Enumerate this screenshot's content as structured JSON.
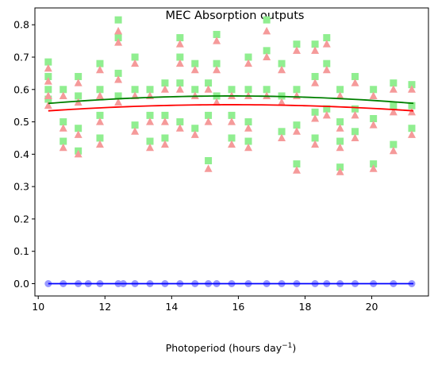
{
  "chart_data": {
    "type": "scatter",
    "title": "MEC Absorption outputs",
    "xlabel": "Photoperiod (hours day",
    "xlabel_sup": "−1",
    "xlabel_end": ")",
    "ylabel": "",
    "xlim": [
      9.9,
      21.7
    ],
    "ylim": [
      -0.038,
      0.852
    ],
    "x_ticks": [
      10,
      12,
      14,
      16,
      18,
      20
    ],
    "x_tick_labels": [
      "10",
      "12",
      "14",
      "16",
      "18",
      "20"
    ],
    "y_ticks": [
      0.0,
      0.1,
      0.2,
      0.3,
      0.4,
      0.5,
      0.6,
      0.7,
      0.8
    ],
    "y_tick_labels": [
      "0.0",
      "0.1",
      "0.2",
      "0.3",
      "0.4",
      "0.5",
      "0.6",
      "0.7",
      "0.8"
    ],
    "grid": false,
    "legend": "none",
    "x_range": [
      10.3,
      21.25
    ],
    "series": [
      {
        "marker": "square",
        "color": "#90ee90",
        "points": [
          [
            10.3,
            0.685
          ],
          [
            10.3,
            0.64
          ],
          [
            10.3,
            0.6
          ],
          [
            10.3,
            0.57
          ],
          [
            10.75,
            0.6
          ],
          [
            10.75,
            0.5
          ],
          [
            10.75,
            0.44
          ],
          [
            11.2,
            0.64
          ],
          [
            11.2,
            0.58
          ],
          [
            11.2,
            0.48
          ],
          [
            11.2,
            0.41
          ],
          [
            11.85,
            0.68
          ],
          [
            11.85,
            0.6
          ],
          [
            11.85,
            0.52
          ],
          [
            11.85,
            0.45
          ],
          [
            12.4,
            0.815
          ],
          [
            12.4,
            0.76
          ],
          [
            12.4,
            0.65
          ],
          [
            12.4,
            0.58
          ],
          [
            12.9,
            0.7
          ],
          [
            12.9,
            0.6
          ],
          [
            12.9,
            0.49
          ],
          [
            13.35,
            0.6
          ],
          [
            13.35,
            0.52
          ],
          [
            13.35,
            0.44
          ],
          [
            13.8,
            0.62
          ],
          [
            13.8,
            0.52
          ],
          [
            13.8,
            0.45
          ],
          [
            14.25,
            0.76
          ],
          [
            14.25,
            0.7
          ],
          [
            14.25,
            0.62
          ],
          [
            14.25,
            0.5
          ],
          [
            14.7,
            0.68
          ],
          [
            14.7,
            0.6
          ],
          [
            14.7,
            0.48
          ],
          [
            15.1,
            0.62
          ],
          [
            15.1,
            0.52
          ],
          [
            15.1,
            0.38
          ],
          [
            15.35,
            0.77
          ],
          [
            15.35,
            0.68
          ],
          [
            15.35,
            0.58
          ],
          [
            15.8,
            0.6
          ],
          [
            15.8,
            0.52
          ],
          [
            15.8,
            0.45
          ],
          [
            16.3,
            0.7
          ],
          [
            16.3,
            0.6
          ],
          [
            16.3,
            0.5
          ],
          [
            16.3,
            0.44
          ],
          [
            16.85,
            0.815
          ],
          [
            16.85,
            0.72
          ],
          [
            16.85,
            0.6
          ],
          [
            17.3,
            0.68
          ],
          [
            17.3,
            0.58
          ],
          [
            17.3,
            0.47
          ],
          [
            17.75,
            0.74
          ],
          [
            17.75,
            0.6
          ],
          [
            17.75,
            0.49
          ],
          [
            17.75,
            0.37
          ],
          [
            18.3,
            0.74
          ],
          [
            18.3,
            0.64
          ],
          [
            18.3,
            0.53
          ],
          [
            18.3,
            0.45
          ],
          [
            18.65,
            0.76
          ],
          [
            18.65,
            0.68
          ],
          [
            18.65,
            0.54
          ],
          [
            19.05,
            0.6
          ],
          [
            19.05,
            0.5
          ],
          [
            19.05,
            0.44
          ],
          [
            19.05,
            0.36
          ],
          [
            19.5,
            0.64
          ],
          [
            19.5,
            0.54
          ],
          [
            19.5,
            0.47
          ],
          [
            20.05,
            0.6
          ],
          [
            20.05,
            0.51
          ],
          [
            20.05,
            0.37
          ],
          [
            20.65,
            0.62
          ],
          [
            20.65,
            0.55
          ],
          [
            20.65,
            0.43
          ],
          [
            21.2,
            0.615
          ],
          [
            21.2,
            0.55
          ],
          [
            21.2,
            0.48
          ]
        ]
      },
      {
        "marker": "triangle",
        "color": "#f59a9a",
        "points": [
          [
            10.3,
            0.665
          ],
          [
            10.3,
            0.625
          ],
          [
            10.3,
            0.58
          ],
          [
            10.3,
            0.55
          ],
          [
            10.75,
            0.58
          ],
          [
            10.75,
            0.48
          ],
          [
            10.75,
            0.42
          ],
          [
            11.2,
            0.62
          ],
          [
            11.2,
            0.56
          ],
          [
            11.2,
            0.46
          ],
          [
            11.2,
            0.4
          ],
          [
            11.85,
            0.66
          ],
          [
            11.85,
            0.58
          ],
          [
            11.85,
            0.5
          ],
          [
            11.85,
            0.43
          ],
          [
            12.4,
            0.78
          ],
          [
            12.4,
            0.745
          ],
          [
            12.4,
            0.63
          ],
          [
            12.4,
            0.56
          ],
          [
            12.9,
            0.68
          ],
          [
            12.9,
            0.58
          ],
          [
            12.9,
            0.47
          ],
          [
            13.35,
            0.58
          ],
          [
            13.35,
            0.5
          ],
          [
            13.35,
            0.42
          ],
          [
            13.8,
            0.6
          ],
          [
            13.8,
            0.5
          ],
          [
            13.8,
            0.43
          ],
          [
            14.25,
            0.74
          ],
          [
            14.25,
            0.68
          ],
          [
            14.25,
            0.6
          ],
          [
            14.25,
            0.48
          ],
          [
            14.7,
            0.66
          ],
          [
            14.7,
            0.58
          ],
          [
            14.7,
            0.46
          ],
          [
            15.1,
            0.6
          ],
          [
            15.1,
            0.5
          ],
          [
            15.1,
            0.355
          ],
          [
            15.35,
            0.75
          ],
          [
            15.35,
            0.66
          ],
          [
            15.35,
            0.56
          ],
          [
            15.8,
            0.58
          ],
          [
            15.8,
            0.5
          ],
          [
            15.8,
            0.43
          ],
          [
            16.3,
            0.68
          ],
          [
            16.3,
            0.58
          ],
          [
            16.3,
            0.48
          ],
          [
            16.3,
            0.42
          ],
          [
            16.85,
            0.78
          ],
          [
            16.85,
            0.7
          ],
          [
            16.85,
            0.58
          ],
          [
            17.3,
            0.66
          ],
          [
            17.3,
            0.56
          ],
          [
            17.3,
            0.45
          ],
          [
            17.75,
            0.72
          ],
          [
            17.75,
            0.58
          ],
          [
            17.75,
            0.47
          ],
          [
            17.75,
            0.35
          ],
          [
            18.3,
            0.72
          ],
          [
            18.3,
            0.62
          ],
          [
            18.3,
            0.51
          ],
          [
            18.3,
            0.43
          ],
          [
            18.65,
            0.74
          ],
          [
            18.65,
            0.66
          ],
          [
            18.65,
            0.52
          ],
          [
            19.05,
            0.58
          ],
          [
            19.05,
            0.48
          ],
          [
            19.05,
            0.42
          ],
          [
            19.05,
            0.345
          ],
          [
            19.5,
            0.62
          ],
          [
            19.5,
            0.52
          ],
          [
            19.5,
            0.45
          ],
          [
            20.05,
            0.58
          ],
          [
            20.05,
            0.49
          ],
          [
            20.05,
            0.355
          ],
          [
            20.65,
            0.6
          ],
          [
            20.65,
            0.53
          ],
          [
            20.65,
            0.41
          ],
          [
            21.2,
            0.6
          ],
          [
            21.2,
            0.53
          ],
          [
            21.2,
            0.46
          ]
        ]
      },
      {
        "marker": "circle",
        "color": "#9999ff",
        "points": [
          [
            10.3,
            0
          ],
          [
            10.75,
            0
          ],
          [
            11.2,
            0
          ],
          [
            11.5,
            0
          ],
          [
            11.85,
            0
          ],
          [
            12.4,
            0
          ],
          [
            12.55,
            0
          ],
          [
            12.9,
            0
          ],
          [
            13.35,
            0
          ],
          [
            13.8,
            0
          ],
          [
            14.25,
            0
          ],
          [
            14.7,
            0
          ],
          [
            15.1,
            0
          ],
          [
            15.35,
            0
          ],
          [
            15.8,
            0
          ],
          [
            16.3,
            0
          ],
          [
            16.85,
            0
          ],
          [
            17.3,
            0
          ],
          [
            17.75,
            0
          ],
          [
            18.3,
            0
          ],
          [
            18.65,
            0
          ],
          [
            19.05,
            0
          ],
          [
            19.5,
            0
          ],
          [
            20.05,
            0
          ],
          [
            20.65,
            0
          ],
          [
            21.2,
            0
          ]
        ]
      }
    ],
    "trend_lines": [
      {
        "color": "#008000",
        "a": 0.557,
        "vertex_x": 15.78,
        "peak": 0.58
      },
      {
        "color": "#ff0000",
        "a": 0.534,
        "vertex_x": 15.78,
        "peak": 0.553
      },
      {
        "color": "#0000ff",
        "a": 0.0,
        "vertex_x": 15.78,
        "peak": 0.0
      }
    ]
  }
}
